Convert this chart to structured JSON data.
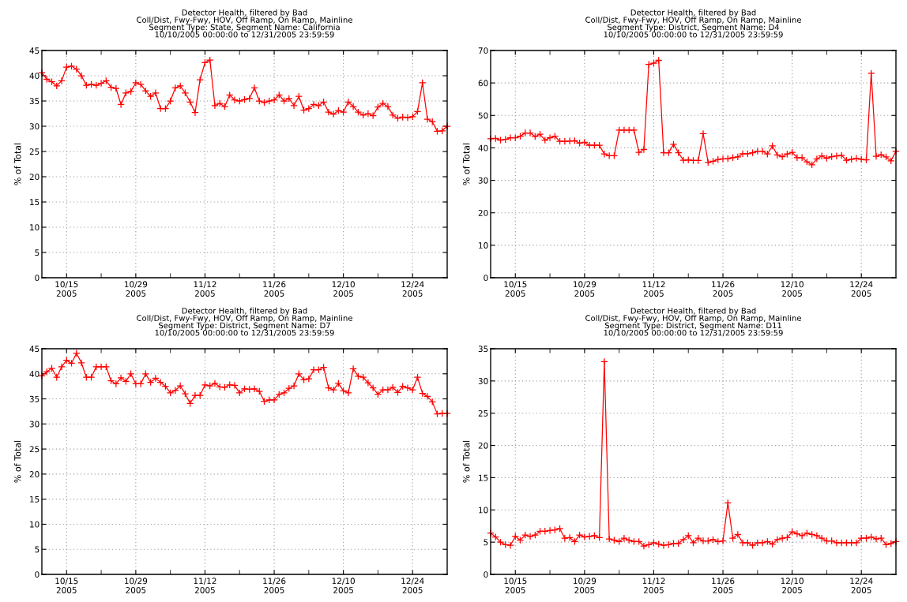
{
  "chart_data": [
    {
      "type": "line",
      "title": "Detector Health, filtered by Bad\nColl/Dist, Fwy-Fwy, HOV, Off Ramp, On Ramp, Mainline\nSegment Type: State, Segment Name: California\n10/10/2005 00:00:00 to 12/31/2005 23:59:59",
      "ylabel": "% of Total",
      "marker": "cross",
      "grid": true,
      "legend": false,
      "xlim": [
        "2005-10-10",
        "2005-12-31"
      ],
      "xticks": [
        {
          "value": "2005-10-15",
          "label": "10/15\n2005"
        },
        {
          "value": "2005-10-22",
          "label": null
        },
        {
          "value": "2005-10-29",
          "label": "10/29\n2005"
        },
        {
          "value": "2005-11-05",
          "label": null
        },
        {
          "value": "2005-11-12",
          "label": "11/12\n2005"
        },
        {
          "value": "2005-11-19",
          "label": null
        },
        {
          "value": "2005-11-26",
          "label": "11/26\n2005"
        },
        {
          "value": "2005-12-03",
          "label": null
        },
        {
          "value": "2005-12-10",
          "label": "12/10\n2005"
        },
        {
          "value": "2005-12-17",
          "label": null
        },
        {
          "value": "2005-12-24",
          "label": "12/24\n2005"
        }
      ],
      "ylim": [
        0,
        45
      ],
      "yticks": [
        0,
        5,
        10,
        15,
        20,
        25,
        30,
        35,
        40,
        45
      ],
      "x": [
        "2005-10-10",
        "2005-10-11",
        "2005-10-12",
        "2005-10-13",
        "2005-10-14",
        "2005-10-15",
        "2005-10-16",
        "2005-10-17",
        "2005-10-18",
        "2005-10-19",
        "2005-10-20",
        "2005-10-21",
        "2005-10-22",
        "2005-10-23",
        "2005-10-24",
        "2005-10-25",
        "2005-10-26",
        "2005-10-27",
        "2005-10-28",
        "2005-10-29",
        "2005-10-30",
        "2005-10-31",
        "2005-11-01",
        "2005-11-02",
        "2005-11-03",
        "2005-11-04",
        "2005-11-05",
        "2005-11-06",
        "2005-11-07",
        "2005-11-08",
        "2005-11-09",
        "2005-11-10",
        "2005-11-11",
        "2005-11-12",
        "2005-11-13",
        "2005-11-14",
        "2005-11-15",
        "2005-11-16",
        "2005-11-17",
        "2005-11-18",
        "2005-11-19",
        "2005-11-20",
        "2005-11-21",
        "2005-11-22",
        "2005-11-23",
        "2005-11-24",
        "2005-11-25",
        "2005-11-26",
        "2005-11-27",
        "2005-11-28",
        "2005-11-29",
        "2005-11-30",
        "2005-12-01",
        "2005-12-02",
        "2005-12-03",
        "2005-12-04",
        "2005-12-05",
        "2005-12-06",
        "2005-12-07",
        "2005-12-08",
        "2005-12-09",
        "2005-12-10",
        "2005-12-11",
        "2005-12-12",
        "2005-12-13",
        "2005-12-14",
        "2005-12-15",
        "2005-12-16",
        "2005-12-17",
        "2005-12-18",
        "2005-12-19",
        "2005-12-20",
        "2005-12-21",
        "2005-12-22",
        "2005-12-23",
        "2005-12-24",
        "2005-12-25",
        "2005-12-26",
        "2005-12-27",
        "2005-12-28",
        "2005-12-29",
        "2005-12-30",
        "2005-12-31"
      ],
      "series": [
        {
          "color": "#ff0000",
          "values": [
            40.6,
            39.3,
            38.8,
            38.0,
            39.0,
            41.7,
            41.9,
            41.3,
            40.0,
            38.1,
            38.3,
            38.1,
            38.5,
            39.0,
            37.7,
            37.5,
            34.3,
            36.6,
            36.9,
            38.6,
            38.3,
            37.0,
            35.9,
            36.6,
            33.5,
            33.5,
            35.0,
            37.6,
            38.0,
            36.6,
            34.8,
            32.7,
            39.2,
            42.6,
            43.1,
            34.1,
            34.5,
            33.9,
            36.2,
            35.2,
            35.0,
            35.3,
            35.5,
            37.6,
            35.0,
            34.7,
            35.0,
            35.2,
            36.2,
            35.0,
            35.5,
            34.1,
            35.9,
            33.2,
            33.5,
            34.3,
            34.1,
            34.8,
            32.8,
            32.4,
            33.1,
            32.8,
            34.8,
            33.9,
            32.8,
            32.2,
            32.5,
            32.1,
            33.8,
            34.5,
            33.9,
            32.2,
            31.6,
            31.8,
            31.7,
            31.9,
            32.9,
            38.6,
            31.4,
            30.9,
            29.0,
            29.1,
            30.0
          ]
        }
      ]
    },
    {
      "type": "line",
      "title": "Detector Health, filtered by Bad\nColl/Dist, Fwy-Fwy, HOV, Off Ramp, On Ramp, Mainline\nSegment Type: District, Segment Name: D4\n10/10/2005 00:00:00 to 12/31/2005 23:59:59",
      "ylabel": "% of Total",
      "marker": "cross",
      "grid": true,
      "legend": false,
      "xlim": [
        "2005-10-10",
        "2005-12-31"
      ],
      "xticks": [
        {
          "value": "2005-10-15",
          "label": "10/15\n2005"
        },
        {
          "value": "2005-10-22",
          "label": null
        },
        {
          "value": "2005-10-29",
          "label": "10/29\n2005"
        },
        {
          "value": "2005-11-05",
          "label": null
        },
        {
          "value": "2005-11-12",
          "label": "11/12\n2005"
        },
        {
          "value": "2005-11-19",
          "label": null
        },
        {
          "value": "2005-11-26",
          "label": "11/26\n2005"
        },
        {
          "value": "2005-12-03",
          "label": null
        },
        {
          "value": "2005-12-10",
          "label": "12/10\n2005"
        },
        {
          "value": "2005-12-17",
          "label": null
        },
        {
          "value": "2005-12-24",
          "label": "12/24\n2005"
        }
      ],
      "ylim": [
        0,
        70
      ],
      "yticks": [
        0,
        10,
        20,
        30,
        40,
        50,
        60,
        70
      ],
      "x": [
        "2005-10-10",
        "2005-10-11",
        "2005-10-12",
        "2005-10-13",
        "2005-10-14",
        "2005-10-15",
        "2005-10-16",
        "2005-10-17",
        "2005-10-18",
        "2005-10-19",
        "2005-10-20",
        "2005-10-21",
        "2005-10-22",
        "2005-10-23",
        "2005-10-24",
        "2005-10-25",
        "2005-10-26",
        "2005-10-27",
        "2005-10-28",
        "2005-10-29",
        "2005-10-30",
        "2005-10-31",
        "2005-11-01",
        "2005-11-02",
        "2005-11-03",
        "2005-11-04",
        "2005-11-05",
        "2005-11-06",
        "2005-11-07",
        "2005-11-08",
        "2005-11-09",
        "2005-11-10",
        "2005-11-11",
        "2005-11-12",
        "2005-11-13",
        "2005-11-14",
        "2005-11-15",
        "2005-11-16",
        "2005-11-17",
        "2005-11-18",
        "2005-11-19",
        "2005-11-20",
        "2005-11-21",
        "2005-11-22",
        "2005-11-23",
        "2005-11-24",
        "2005-11-25",
        "2005-11-26",
        "2005-11-27",
        "2005-11-28",
        "2005-11-29",
        "2005-11-30",
        "2005-12-01",
        "2005-12-02",
        "2005-12-03",
        "2005-12-04",
        "2005-12-05",
        "2005-12-06",
        "2005-12-07",
        "2005-12-08",
        "2005-12-09",
        "2005-12-10",
        "2005-12-11",
        "2005-12-12",
        "2005-12-13",
        "2005-12-14",
        "2005-12-15",
        "2005-12-16",
        "2005-12-17",
        "2005-12-18",
        "2005-12-19",
        "2005-12-20",
        "2005-12-21",
        "2005-12-22",
        "2005-12-23",
        "2005-12-24",
        "2005-12-25",
        "2005-12-26",
        "2005-12-27",
        "2005-12-28",
        "2005-12-29",
        "2005-12-30",
        "2005-12-31"
      ],
      "series": [
        {
          "color": "#ff0000",
          "values": [
            42.8,
            42.9,
            42.4,
            42.6,
            43.1,
            43.1,
            43.6,
            44.6,
            44.6,
            43.5,
            44.2,
            42.4,
            43.1,
            43.6,
            42.0,
            42.0,
            42.1,
            42.2,
            41.5,
            41.7,
            40.8,
            40.8,
            40.8,
            38.1,
            37.6,
            37.6,
            45.5,
            45.5,
            45.5,
            45.5,
            38.6,
            39.5,
            65.7,
            66.1,
            67.0,
            38.5,
            38.5,
            41.1,
            38.5,
            36.2,
            36.3,
            36.1,
            36.1,
            44.4,
            35.5,
            35.9,
            36.4,
            36.6,
            36.7,
            37.0,
            37.2,
            38.2,
            38.2,
            38.5,
            39.0,
            39.0,
            38.1,
            40.6,
            37.8,
            37.3,
            38.1,
            38.6,
            37.0,
            37.0,
            35.7,
            34.8,
            36.6,
            37.5,
            36.8,
            37.3,
            37.5,
            37.7,
            36.2,
            36.5,
            36.8,
            36.5,
            36.3,
            63.0,
            37.4,
            37.9,
            37.2,
            36.0,
            39.0
          ]
        }
      ]
    },
    {
      "type": "line",
      "title": "Detector Health, filtered by Bad\nColl/Dist, Fwy-Fwy, HOV, Off Ramp, On Ramp, Mainline\nSegment Type: District, Segment Name: D7\n10/10/2005 00:00:00 to 12/31/2005 23:59:59",
      "ylabel": "% of Total",
      "marker": "cross",
      "grid": true,
      "legend": false,
      "xlim": [
        "2005-10-10",
        "2005-12-31"
      ],
      "xticks": [
        {
          "value": "2005-10-15",
          "label": "10/15\n2005"
        },
        {
          "value": "2005-10-22",
          "label": null
        },
        {
          "value": "2005-10-29",
          "label": "10/29\n2005"
        },
        {
          "value": "2005-11-05",
          "label": null
        },
        {
          "value": "2005-11-12",
          "label": "11/12\n2005"
        },
        {
          "value": "2005-11-19",
          "label": null
        },
        {
          "value": "2005-11-26",
          "label": "11/26\n2005"
        },
        {
          "value": "2005-12-03",
          "label": null
        },
        {
          "value": "2005-12-10",
          "label": "12/10\n2005"
        },
        {
          "value": "2005-12-17",
          "label": null
        },
        {
          "value": "2005-12-24",
          "label": "12/24\n2005"
        }
      ],
      "ylim": [
        0,
        45
      ],
      "yticks": [
        0,
        5,
        10,
        15,
        20,
        25,
        30,
        35,
        40,
        45
      ],
      "x": [
        "2005-10-10",
        "2005-10-11",
        "2005-10-12",
        "2005-10-13",
        "2005-10-14",
        "2005-10-15",
        "2005-10-16",
        "2005-10-17",
        "2005-10-18",
        "2005-10-19",
        "2005-10-20",
        "2005-10-21",
        "2005-10-22",
        "2005-10-23",
        "2005-10-24",
        "2005-10-25",
        "2005-10-26",
        "2005-10-27",
        "2005-10-28",
        "2005-10-29",
        "2005-10-30",
        "2005-10-31",
        "2005-11-01",
        "2005-11-02",
        "2005-11-03",
        "2005-11-04",
        "2005-11-05",
        "2005-11-06",
        "2005-11-07",
        "2005-11-08",
        "2005-11-09",
        "2005-11-10",
        "2005-11-11",
        "2005-11-12",
        "2005-11-13",
        "2005-11-14",
        "2005-11-15",
        "2005-11-16",
        "2005-11-17",
        "2005-11-18",
        "2005-11-19",
        "2005-11-20",
        "2005-11-21",
        "2005-11-22",
        "2005-11-23",
        "2005-11-24",
        "2005-11-25",
        "2005-11-26",
        "2005-11-27",
        "2005-11-28",
        "2005-11-29",
        "2005-11-30",
        "2005-12-01",
        "2005-12-02",
        "2005-12-03",
        "2005-12-04",
        "2005-12-05",
        "2005-12-06",
        "2005-12-07",
        "2005-12-08",
        "2005-12-09",
        "2005-12-10",
        "2005-12-11",
        "2005-12-12",
        "2005-12-13",
        "2005-12-14",
        "2005-12-15",
        "2005-12-16",
        "2005-12-17",
        "2005-12-18",
        "2005-12-19",
        "2005-12-20",
        "2005-12-21",
        "2005-12-22",
        "2005-12-23",
        "2005-12-24",
        "2005-12-25",
        "2005-12-26",
        "2005-12-27",
        "2005-12-28",
        "2005-12-29",
        "2005-12-30",
        "2005-12-31"
      ],
      "series": [
        {
          "color": "#ff0000",
          "values": [
            39.6,
            40.4,
            41.1,
            39.3,
            41.4,
            42.7,
            42.1,
            44.1,
            42.2,
            39.3,
            39.3,
            41.4,
            41.4,
            41.4,
            38.6,
            38.0,
            39.2,
            38.5,
            40.0,
            38.0,
            38.0,
            40.0,
            38.3,
            39.1,
            38.3,
            37.5,
            36.2,
            36.7,
            37.6,
            36.0,
            34.1,
            35.7,
            35.7,
            37.8,
            37.6,
            38.1,
            37.4,
            37.3,
            37.8,
            37.7,
            36.2,
            37.0,
            36.9,
            37.0,
            36.5,
            34.5,
            34.8,
            34.8,
            35.9,
            36.2,
            37.1,
            37.6,
            40.0,
            38.8,
            39.0,
            40.8,
            40.8,
            41.3,
            37.2,
            36.8,
            38.1,
            36.6,
            36.2,
            41.0,
            39.5,
            39.3,
            38.2,
            37.2,
            35.9,
            36.8,
            36.8,
            37.3,
            36.3,
            37.5,
            37.2,
            36.8,
            39.3,
            36.1,
            35.5,
            34.4,
            32.0,
            32.1,
            32.1
          ]
        }
      ]
    },
    {
      "type": "line",
      "title": "Detector Health, filtered by Bad\nColl/Dist, Fwy-Fwy, HOV, Off Ramp, On Ramp, Mainline\nSegment Type: District, Segment Name: D11\n10/10/2005 00:00:00 to 12/31/2005 23:59:59",
      "ylabel": "% of Total",
      "marker": "cross",
      "grid": true,
      "legend": false,
      "xlim": [
        "2005-10-10",
        "2005-12-31"
      ],
      "xticks": [
        {
          "value": "2005-10-15",
          "label": "10/15\n2005"
        },
        {
          "value": "2005-10-22",
          "label": null
        },
        {
          "value": "2005-10-29",
          "label": "10/29\n2005"
        },
        {
          "value": "2005-11-05",
          "label": null
        },
        {
          "value": "2005-11-12",
          "label": "11/12\n2005"
        },
        {
          "value": "2005-11-19",
          "label": null
        },
        {
          "value": "2005-11-26",
          "label": "11/26\n2005"
        },
        {
          "value": "2005-12-03",
          "label": null
        },
        {
          "value": "2005-12-10",
          "label": "12/10\n2005"
        },
        {
          "value": "2005-12-17",
          "label": null
        },
        {
          "value": "2005-12-24",
          "label": "12/24\n2005"
        }
      ],
      "ylim": [
        0,
        35
      ],
      "yticks": [
        0,
        5,
        10,
        15,
        20,
        25,
        30,
        35
      ],
      "x": [
        "2005-10-10",
        "2005-10-11",
        "2005-10-12",
        "2005-10-13",
        "2005-10-14",
        "2005-10-15",
        "2005-10-16",
        "2005-10-17",
        "2005-10-18",
        "2005-10-19",
        "2005-10-20",
        "2005-10-21",
        "2005-10-22",
        "2005-10-23",
        "2005-10-24",
        "2005-10-25",
        "2005-10-26",
        "2005-10-27",
        "2005-10-28",
        "2005-10-29",
        "2005-10-30",
        "2005-10-31",
        "2005-11-01",
        "2005-11-02",
        "2005-11-03",
        "2005-11-04",
        "2005-11-05",
        "2005-11-06",
        "2005-11-07",
        "2005-11-08",
        "2005-11-09",
        "2005-11-10",
        "2005-11-11",
        "2005-11-12",
        "2005-11-13",
        "2005-11-14",
        "2005-11-15",
        "2005-11-16",
        "2005-11-17",
        "2005-11-18",
        "2005-11-19",
        "2005-11-20",
        "2005-11-21",
        "2005-11-22",
        "2005-11-23",
        "2005-11-24",
        "2005-11-25",
        "2005-11-26",
        "2005-11-27",
        "2005-11-28",
        "2005-11-29",
        "2005-11-30",
        "2005-12-01",
        "2005-12-02",
        "2005-12-03",
        "2005-12-04",
        "2005-12-05",
        "2005-12-06",
        "2005-12-07",
        "2005-12-08",
        "2005-12-09",
        "2005-12-10",
        "2005-12-11",
        "2005-12-12",
        "2005-12-13",
        "2005-12-14",
        "2005-12-15",
        "2005-12-16",
        "2005-12-17",
        "2005-12-18",
        "2005-12-19",
        "2005-12-20",
        "2005-12-21",
        "2005-12-22",
        "2005-12-23",
        "2005-12-24",
        "2005-12-25",
        "2005-12-26",
        "2005-12-27",
        "2005-12-28",
        "2005-12-29",
        "2005-12-30",
        "2005-12-31"
      ],
      "series": [
        {
          "color": "#ff0000",
          "values": [
            6.4,
            5.8,
            5.0,
            4.6,
            4.5,
            5.9,
            5.3,
            6.1,
            5.9,
            6.1,
            6.7,
            6.7,
            6.8,
            6.9,
            7.1,
            5.6,
            5.7,
            5.1,
            6.1,
            5.8,
            5.9,
            6.0,
            5.7,
            33.0,
            5.5,
            5.3,
            5.1,
            5.6,
            5.3,
            5.1,
            5.1,
            4.4,
            4.6,
            4.9,
            4.7,
            4.5,
            4.6,
            4.8,
            4.8,
            5.4,
            6.0,
            4.9,
            5.6,
            5.2,
            5.2,
            5.4,
            5.1,
            5.2,
            11.1,
            5.6,
            6.2,
            4.9,
            4.9,
            4.5,
            4.9,
            4.9,
            5.1,
            4.7,
            5.4,
            5.6,
            5.7,
            6.6,
            6.3,
            6.0,
            6.4,
            6.2,
            6.0,
            5.6,
            5.2,
            5.2,
            4.9,
            4.9,
            4.9,
            4.9,
            4.9,
            5.6,
            5.6,
            5.8,
            5.5,
            5.6,
            4.6,
            4.8,
            5.1
          ]
        }
      ]
    }
  ]
}
